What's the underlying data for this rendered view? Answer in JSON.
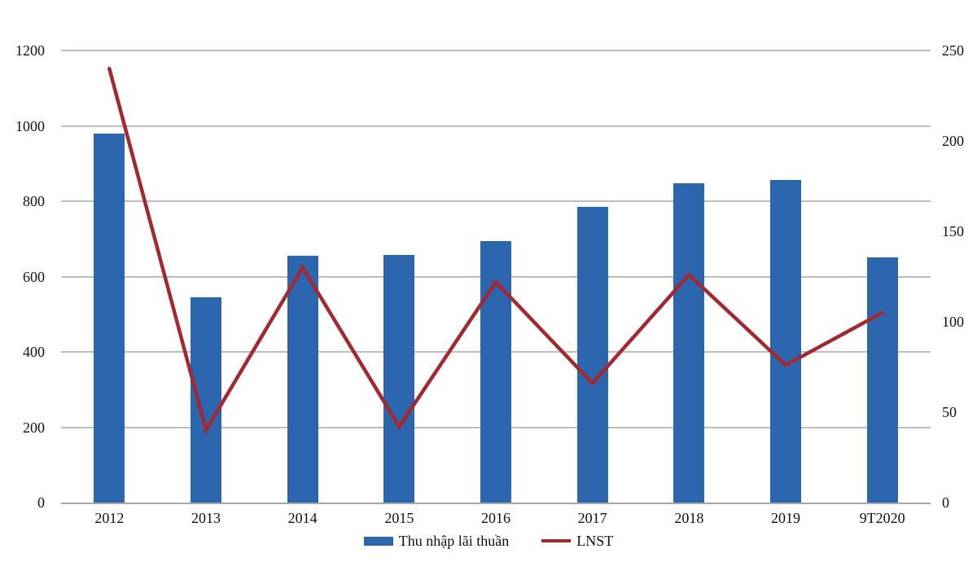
{
  "chart_data": {
    "type": "combo-bar-line",
    "title": "",
    "categories": [
      "2012",
      "2013",
      "2014",
      "2015",
      "2016",
      "2017",
      "2018",
      "2019",
      "9T2020"
    ],
    "series": [
      {
        "name": "Thu nhập lãi thuần",
        "type": "bar",
        "axis": "left",
        "color": "#2b66ae",
        "values": [
          980,
          545,
          655,
          658,
          695,
          785,
          848,
          856,
          650
        ]
      },
      {
        "name": "LNST",
        "type": "line",
        "axis": "right",
        "color": "#a3282f",
        "values": [
          240,
          40,
          130,
          42,
          122,
          66,
          126,
          76,
          105
        ]
      }
    ],
    "axes": {
      "left": {
        "min": 0,
        "max": 1200,
        "ticks": [
          0,
          200,
          400,
          600,
          800,
          1000,
          1200
        ]
      },
      "right": {
        "min": 0,
        "max": 250,
        "ticks": [
          0,
          50,
          100,
          150,
          200,
          250
        ]
      }
    },
    "grid": true,
    "legend_position": "bottom"
  },
  "colors": {
    "gridline": "#bdbdbd",
    "axis_line": "#a6a6a6",
    "text": "#111111",
    "background": "#ffffff"
  }
}
